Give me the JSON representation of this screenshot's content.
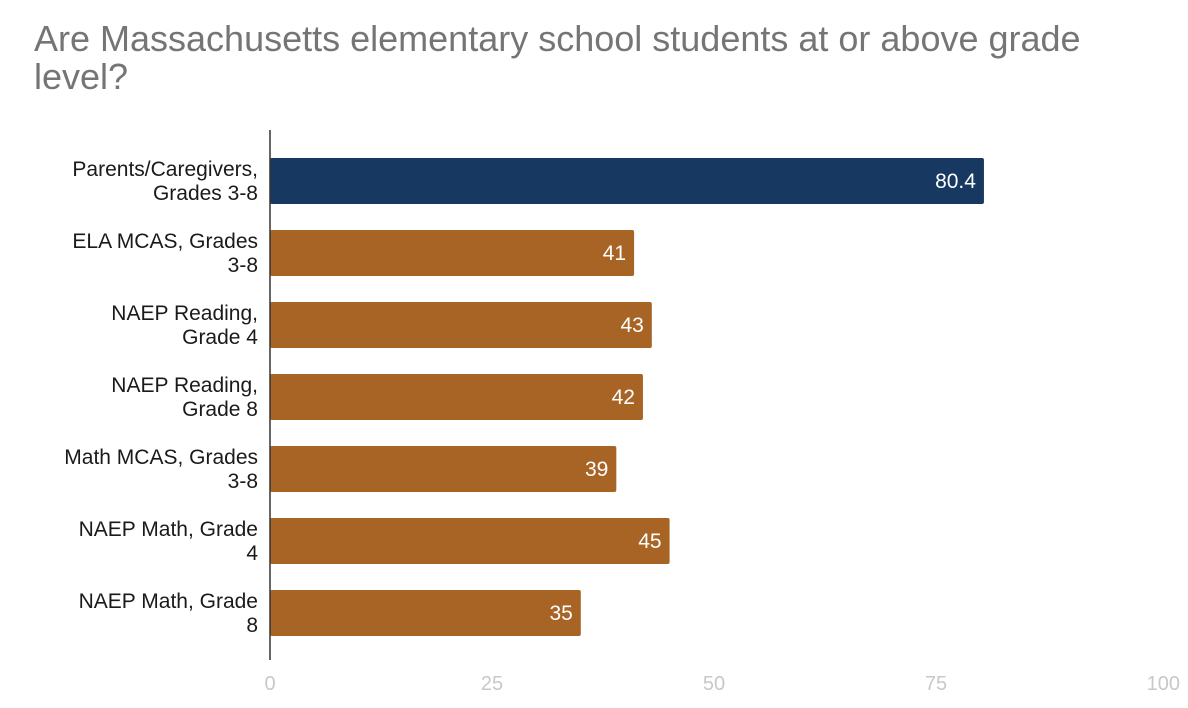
{
  "chart_data": {
    "type": "bar",
    "orientation": "horizontal",
    "title": "Are Massachusetts elementary school students at or above grade level?",
    "categories": [
      [
        "Parents/Caregivers,",
        "Grades 3-8"
      ],
      [
        "ELA MCAS, Grades",
        "3-8"
      ],
      [
        "NAEP Reading,",
        "Grade 4"
      ],
      [
        "NAEP Reading,",
        "Grade 8"
      ],
      [
        "Math MCAS, Grades",
        "3-8"
      ],
      [
        "NAEP Math, Grade",
        "4"
      ],
      [
        "NAEP Math, Grade",
        "8"
      ]
    ],
    "values": [
      80.4,
      41,
      43,
      42,
      39,
      45,
      35
    ],
    "value_labels": [
      "80.4",
      "41",
      "43",
      "42",
      "39",
      "45",
      "35"
    ],
    "colors": [
      "#173860",
      "#a86424",
      "#a86424",
      "#a86424",
      "#a86424",
      "#a86424",
      "#a86424"
    ],
    "xlim": [
      0,
      100
    ],
    "xticks": [
      0,
      25,
      50,
      75,
      100
    ],
    "grid": false,
    "legend": "none"
  }
}
